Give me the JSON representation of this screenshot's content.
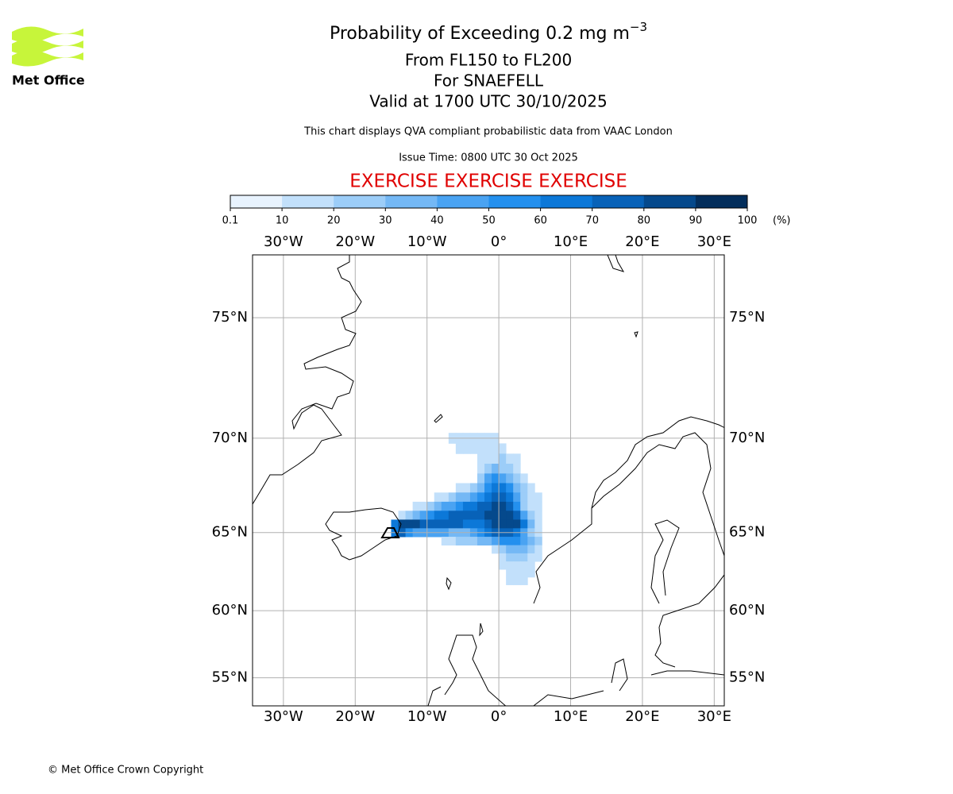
{
  "logo": {
    "text": "Met Office"
  },
  "chart_data": {
    "type": "map",
    "title": "Probability of Exceeding 0.2 mg m",
    "title_superscript": "−3",
    "subtitle": [
      "From FL150 to FL200",
      "For SNAEFELL",
      "Valid at 1700 UTC 30/10/2025"
    ],
    "note": "This chart displays QVA compliant probabilistic data from VAAC London",
    "issue_time": "Issue Time: 0800 UTC 30 Oct 2025",
    "banner": "EXERCISE EXERCISE EXERCISE",
    "colorbar": {
      "bounds": [
        {
          "value": 0.1,
          "label": "0.1"
        },
        10,
        20,
        30,
        40,
        50,
        60,
        70,
        80,
        90,
        100
      ],
      "colors": [
        "#e8f3fe",
        "#c2e0fb",
        "#9ccdf8",
        "#74b8f5",
        "#4aa3f2",
        "#2490ee",
        "#0c78d8",
        "#0862b8",
        "#05498c",
        "#032e5c"
      ],
      "unit": "(%)"
    },
    "projection": "mercator",
    "xlim": [
      -34.3,
      31.4
    ],
    "ylim": [
      52.7,
      77.1
    ],
    "xticks": [
      {
        "value": -30,
        "label": "30°W"
      },
      {
        "value": -20,
        "label": "20°W"
      },
      {
        "value": -10,
        "label": "10°W"
      },
      {
        "value": 0,
        "label": "0°"
      },
      {
        "value": 10,
        "label": "10°E"
      },
      {
        "value": 20,
        "label": "20°E"
      },
      {
        "value": 30,
        "label": "30°E"
      }
    ],
    "yticks": [
      {
        "value": 55,
        "label": "55°N"
      },
      {
        "value": 60,
        "label": "60°N"
      },
      {
        "value": 65,
        "label": "65°N"
      },
      {
        "value": 70,
        "label": "70°N"
      },
      {
        "value": 75,
        "label": "75°N"
      }
    ],
    "grid": true,
    "plume": {
      "lat": [
        70,
        69.5,
        69,
        68.5,
        68,
        67.5,
        67,
        66.5,
        66,
        65.5,
        65,
        64.5,
        64,
        63.5,
        63,
        62.5,
        62
      ],
      "lon_start": [
        -7,
        -6,
        -3,
        -3,
        -3,
        -6,
        -9,
        -12,
        -14,
        -15,
        -15,
        -8,
        -1,
        0,
        0,
        1,
        1
      ],
      "values": [
        [
          10,
          10,
          15,
          15,
          15,
          15,
          15
        ],
        [
          15,
          15,
          15,
          15,
          15,
          15,
          10
        ],
        [
          15,
          15,
          15,
          20,
          15,
          10
        ],
        [
          15,
          20,
          30,
          20,
          20,
          15
        ],
        [
          20,
          40,
          50,
          40,
          30,
          20,
          15
        ],
        [
          10,
          15,
          20,
          30,
          50,
          60,
          60,
          50,
          30,
          20,
          15
        ],
        [
          10,
          15,
          20,
          30,
          30,
          40,
          50,
          60,
          70,
          70,
          60,
          40,
          20,
          15,
          10
        ],
        [
          10,
          15,
          20,
          30,
          40,
          40,
          50,
          60,
          60,
          70,
          70,
          80,
          80,
          70,
          50,
          20,
          10,
          10
        ],
        [
          10,
          20,
          30,
          40,
          50,
          60,
          60,
          70,
          70,
          70,
          70,
          70,
          80,
          80,
          85,
          80,
          70,
          40,
          20,
          10
        ],
        [
          60,
          80,
          85,
          80,
          70,
          70,
          70,
          70,
          70,
          70,
          60,
          60,
          60,
          70,
          80,
          80,
          85,
          80,
          60,
          30,
          10
        ],
        [
          60,
          70,
          50,
          40,
          40,
          40,
          40,
          40,
          30,
          30,
          30,
          40,
          50,
          60,
          70,
          70,
          70,
          60,
          40,
          20,
          10
        ],
        [
          10,
          15,
          20,
          20,
          20,
          30,
          30,
          40,
          50,
          50,
          50,
          40,
          30,
          20
        ],
        [
          15,
          20,
          30,
          30,
          30,
          20,
          10
        ],
        [
          15,
          20,
          20,
          20,
          15,
          10
        ],
        [
          15,
          15,
          15,
          15,
          10
        ],
        [
          15,
          15,
          15,
          10
        ],
        [
          15,
          15,
          10
        ]
      ]
    }
  },
  "footer": {
    "copyright": "© Met Office Crown Copyright"
  }
}
